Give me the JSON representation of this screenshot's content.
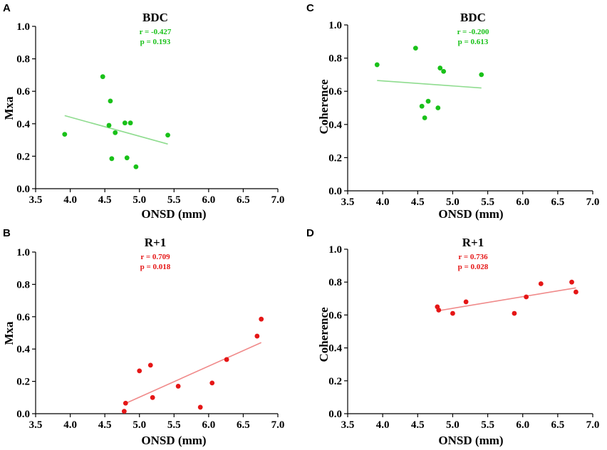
{
  "chart_data": [
    {
      "panel": "A",
      "type": "scatter",
      "title": "BDC",
      "r_text": "r = -0.427",
      "p_text": "p = 0.193",
      "xlabel": "ONSD (mm)",
      "ylabel": "Mxa",
      "xlim": [
        3.5,
        7.0
      ],
      "ylim": [
        0.0,
        1.0
      ],
      "xticks": [
        "3.5",
        "4.0",
        "4.5",
        "5.0",
        "5.5",
        "6.0",
        "6.5",
        "7.0"
      ],
      "yticks": [
        "0.0",
        "0.2",
        "0.4",
        "0.6",
        "0.8",
        "1.0"
      ],
      "color": "#19c119",
      "line_color": "#8fdc8f",
      "points": [
        {
          "x": 3.92,
          "y": 0.335
        },
        {
          "x": 4.47,
          "y": 0.69
        },
        {
          "x": 4.56,
          "y": 0.39
        },
        {
          "x": 4.58,
          "y": 0.54
        },
        {
          "x": 4.6,
          "y": 0.185
        },
        {
          "x": 4.65,
          "y": 0.345
        },
        {
          "x": 4.79,
          "y": 0.405
        },
        {
          "x": 4.82,
          "y": 0.19
        },
        {
          "x": 4.87,
          "y": 0.405
        },
        {
          "x": 4.95,
          "y": 0.135
        },
        {
          "x": 5.41,
          "y": 0.33
        }
      ],
      "fit": {
        "x": [
          3.92,
          5.41
        ],
        "y": [
          0.45,
          0.275
        ]
      }
    },
    {
      "panel": "C",
      "type": "scatter",
      "title": "BDC",
      "r_text": "r = -0.200",
      "p_text": "p = 0.613",
      "xlabel": "ONSD (mm)",
      "ylabel": "Coherence",
      "xlim": [
        3.5,
        7.0
      ],
      "ylim": [
        0.0,
        1.0
      ],
      "xticks": [
        "3.5",
        "4.0",
        "4.5",
        "5.0",
        "5.5",
        "6.0",
        "6.5",
        "7.0"
      ],
      "yticks": [
        "0.0",
        "0.2",
        "0.4",
        "0.6",
        "0.8",
        "1.0"
      ],
      "color": "#19c119",
      "line_color": "#8fdc8f",
      "points": [
        {
          "x": 3.92,
          "y": 0.76
        },
        {
          "x": 4.47,
          "y": 0.86
        },
        {
          "x": 4.56,
          "y": 0.51
        },
        {
          "x": 4.6,
          "y": 0.44
        },
        {
          "x": 4.65,
          "y": 0.54
        },
        {
          "x": 4.79,
          "y": 0.5
        },
        {
          "x": 4.82,
          "y": 0.74
        },
        {
          "x": 4.87,
          "y": 0.72
        },
        {
          "x": 5.41,
          "y": 0.7
        }
      ],
      "fit": {
        "x": [
          3.92,
          5.41
        ],
        "y": [
          0.665,
          0.62
        ]
      }
    },
    {
      "panel": "B",
      "type": "scatter",
      "title": "R+1",
      "r_text": "r = 0.709",
      "p_text": "p = 0.018",
      "xlabel": "ONSD (mm)",
      "ylabel": "Mxa",
      "xlim": [
        3.5,
        7.0
      ],
      "ylim": [
        0.0,
        1.0
      ],
      "xticks": [
        "3.5",
        "4.0",
        "4.5",
        "5.0",
        "5.5",
        "6.0",
        "6.5",
        "7.0"
      ],
      "yticks": [
        "0.0",
        "0.2",
        "0.4",
        "0.6",
        "0.8",
        "1.0"
      ],
      "color": "#e51616",
      "line_color": "#f08a8a",
      "points": [
        {
          "x": 4.78,
          "y": 0.015
        },
        {
          "x": 4.8,
          "y": 0.065
        },
        {
          "x": 5.0,
          "y": 0.265
        },
        {
          "x": 5.16,
          "y": 0.3
        },
        {
          "x": 5.19,
          "y": 0.1
        },
        {
          "x": 5.56,
          "y": 0.17
        },
        {
          "x": 5.88,
          "y": 0.04
        },
        {
          "x": 6.05,
          "y": 0.19
        },
        {
          "x": 6.26,
          "y": 0.335
        },
        {
          "x": 6.7,
          "y": 0.48
        },
        {
          "x": 6.76,
          "y": 0.585
        }
      ],
      "fit": {
        "x": [
          4.78,
          6.76
        ],
        "y": [
          0.06,
          0.44
        ]
      }
    },
    {
      "panel": "D",
      "type": "scatter",
      "title": "R+1",
      "r_text": "r = 0.736",
      "p_text": "p = 0.028",
      "xlabel": "ONSD (mm)",
      "ylabel": "Coherence",
      "xlim": [
        3.5,
        7.0
      ],
      "ylim": [
        0.0,
        1.0
      ],
      "xticks": [
        "3.5",
        "4.0",
        "4.5",
        "5.0",
        "5.5",
        "6.0",
        "6.5",
        "7.0"
      ],
      "yticks": [
        "0.0",
        "0.2",
        "0.4",
        "0.6",
        "0.8",
        "1.0"
      ],
      "color": "#e51616",
      "line_color": "#f08a8a",
      "points": [
        {
          "x": 4.78,
          "y": 0.65
        },
        {
          "x": 4.8,
          "y": 0.63
        },
        {
          "x": 5.0,
          "y": 0.61
        },
        {
          "x": 5.19,
          "y": 0.68
        },
        {
          "x": 5.88,
          "y": 0.61
        },
        {
          "x": 6.05,
          "y": 0.71
        },
        {
          "x": 6.26,
          "y": 0.79
        },
        {
          "x": 6.7,
          "y": 0.8
        },
        {
          "x": 6.76,
          "y": 0.74
        }
      ],
      "fit": {
        "x": [
          4.78,
          6.76
        ],
        "y": [
          0.625,
          0.765
        ]
      }
    }
  ]
}
